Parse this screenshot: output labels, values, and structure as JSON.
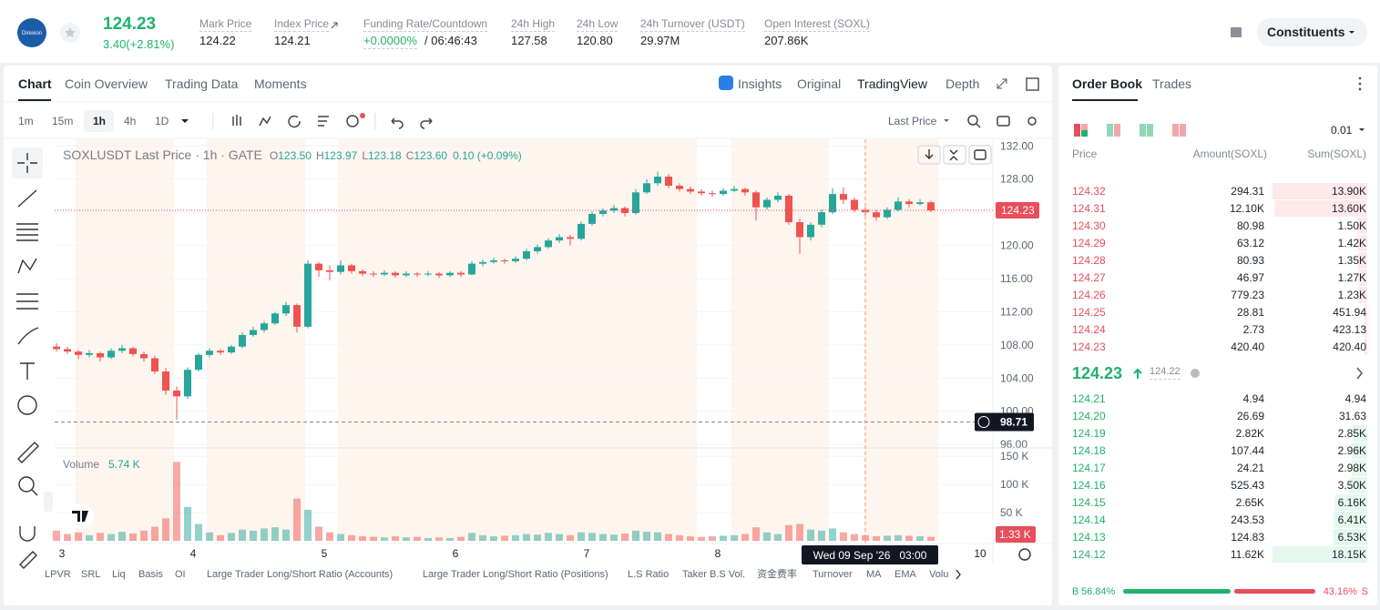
{
  "header": {
    "logo_text": "Direxion",
    "price": "124.23",
    "change": "3.40(+2.81%)",
    "stats": [
      {
        "label": "Mark Price",
        "value": "124.22"
      },
      {
        "label": "Index Price",
        "value": "124.21"
      },
      {
        "label": "Funding Rate/Countdown",
        "value": "+0.0000%",
        "countdown": "/ 06:46:43"
      },
      {
        "label": "24h High",
        "value": "127.58"
      },
      {
        "label": "24h Low",
        "value": "120.80"
      },
      {
        "label": "24h Turnover (USDT)",
        "value": "29.97M"
      },
      {
        "label": "Open Interest (SOXL)",
        "value": "207.86K"
      }
    ],
    "button": "Constituents"
  },
  "tabs": [
    "Chart",
    "Coin Overview",
    "Trading Data",
    "Moments"
  ],
  "view_tabs": [
    "Insights",
    "Original",
    "TradingView",
    "Depth"
  ],
  "intervals": [
    "1m",
    "15m",
    "1h",
    "4h",
    "1D"
  ],
  "price_source": "Last Price",
  "indicators": [
    "LPVR",
    "SRL",
    "Liq",
    "Basis",
    "OI",
    "Large Trader Long/Short Ratio (Accounts)",
    "Large Trader Long/Short Ratio (Positions)",
    "L.S Ratio",
    "Taker B.S Vol.",
    "资金费率",
    "Turnover",
    "MA",
    "EMA",
    "Volu"
  ],
  "chart_data": {
    "type": "candlestick",
    "title": "SOXLUSDT Last Price · 1h · GATE",
    "legend_fields": [
      {
        "label": "O",
        "value": "123.50"
      },
      {
        "label": "H",
        "value": "123.97"
      },
      {
        "label": "L",
        "value": "123.18"
      },
      {
        "label": "C",
        "value": "123.60"
      }
    ],
    "legend_change": "0.10 (+0.09%)",
    "x_labels": [
      "3",
      "4",
      "5",
      "6",
      "7",
      "8",
      "10"
    ],
    "candles": [
      [
        107.8,
        108.2,
        107.2,
        107.5
      ],
      [
        107.5,
        107.8,
        106.9,
        107.2
      ],
      [
        107.2,
        107.4,
        106.3,
        106.8
      ],
      [
        106.8,
        107.4,
        106.5,
        107.0
      ],
      [
        107.0,
        107.2,
        106.0,
        106.5
      ],
      [
        106.5,
        107.6,
        106.3,
        107.3
      ],
      [
        107.3,
        108.0,
        107.0,
        107.6
      ],
      [
        107.6,
        107.8,
        106.6,
        106.9
      ],
      [
        106.9,
        107.2,
        106.0,
        106.4
      ],
      [
        106.4,
        106.7,
        104.5,
        104.8
      ],
      [
        104.8,
        105.2,
        102.0,
        102.5
      ],
      [
        102.5,
        103.0,
        99.0,
        101.8
      ],
      [
        101.8,
        105.3,
        101.5,
        105.0
      ],
      [
        105.0,
        107.0,
        104.8,
        106.8
      ],
      [
        106.8,
        107.6,
        106.5,
        107.3
      ],
      [
        107.3,
        107.5,
        106.8,
        107.1
      ],
      [
        107.1,
        108.0,
        106.9,
        107.8
      ],
      [
        107.8,
        109.5,
        107.6,
        109.2
      ],
      [
        109.2,
        110.2,
        109.0,
        109.8
      ],
      [
        109.8,
        110.9,
        109.5,
        110.6
      ],
      [
        110.6,
        112.0,
        110.4,
        111.8
      ],
      [
        111.8,
        113.2,
        111.5,
        112.8
      ],
      [
        112.8,
        113.0,
        109.5,
        110.2
      ],
      [
        110.2,
        118.2,
        110.0,
        117.8
      ],
      [
        117.8,
        118.0,
        116.2,
        117.0
      ],
      [
        117.0,
        117.6,
        115.8,
        116.8
      ],
      [
        116.8,
        118.2,
        116.5,
        117.6
      ],
      [
        117.6,
        117.8,
        116.6,
        116.9
      ],
      [
        116.9,
        117.1,
        116.3,
        116.6
      ],
      [
        116.6,
        116.9,
        116.2,
        116.5
      ],
      [
        116.5,
        117.0,
        116.3,
        116.7
      ],
      [
        116.7,
        116.9,
        116.1,
        116.4
      ],
      [
        116.4,
        116.9,
        116.2,
        116.6
      ],
      [
        116.6,
        116.8,
        116.2,
        116.5
      ],
      [
        116.5,
        116.9,
        116.3,
        116.6
      ],
      [
        116.6,
        116.8,
        116.1,
        116.4
      ],
      [
        116.4,
        116.9,
        116.2,
        116.7
      ],
      [
        116.7,
        116.9,
        116.2,
        116.5
      ],
      [
        116.5,
        118.1,
        116.4,
        117.8
      ],
      [
        117.8,
        118.3,
        117.5,
        118.0
      ],
      [
        118.0,
        118.5,
        117.8,
        118.2
      ],
      [
        118.2,
        118.4,
        117.8,
        118.1
      ],
      [
        118.1,
        118.7,
        117.9,
        118.4
      ],
      [
        118.4,
        119.6,
        118.2,
        119.3
      ],
      [
        119.3,
        120.1,
        119.0,
        119.8
      ],
      [
        119.8,
        120.9,
        119.6,
        120.6
      ],
      [
        120.6,
        121.4,
        120.3,
        121.0
      ],
      [
        121.0,
        121.3,
        120.0,
        120.8
      ],
      [
        120.8,
        122.9,
        120.6,
        122.6
      ],
      [
        122.6,
        124.1,
        122.4,
        123.8
      ],
      [
        123.8,
        124.5,
        123.5,
        124.2
      ],
      [
        124.2,
        124.9,
        123.9,
        124.5
      ],
      [
        124.5,
        124.7,
        123.5,
        123.9
      ],
      [
        123.9,
        126.8,
        123.7,
        126.4
      ],
      [
        126.4,
        128.0,
        126.2,
        127.5
      ],
      [
        127.5,
        128.9,
        127.2,
        128.3
      ],
      [
        128.3,
        128.6,
        126.9,
        127.2
      ],
      [
        127.2,
        127.5,
        126.5,
        126.8
      ],
      [
        126.8,
        127.1,
        126.2,
        126.5
      ],
      [
        126.5,
        126.8,
        126.0,
        126.3
      ],
      [
        126.3,
        126.6,
        125.9,
        126.2
      ],
      [
        126.2,
        126.9,
        126.0,
        126.6
      ],
      [
        126.6,
        127.2,
        126.4,
        126.8
      ],
      [
        126.8,
        127.0,
        126.0,
        126.4
      ],
      [
        126.4,
        126.6,
        123.0,
        124.6
      ],
      [
        124.6,
        125.8,
        124.3,
        125.5
      ],
      [
        125.5,
        126.4,
        125.2,
        126.0
      ],
      [
        126.0,
        126.2,
        122.5,
        122.8
      ],
      [
        122.8,
        123.2,
        119.0,
        121.0
      ],
      [
        121.0,
        122.8,
        120.6,
        122.5
      ],
      [
        122.5,
        124.3,
        122.2,
        124.0
      ],
      [
        124.0,
        126.9,
        123.8,
        126.2
      ],
      [
        126.2,
        127.0,
        125.0,
        125.5
      ],
      [
        125.5,
        125.8,
        124.0,
        124.3
      ],
      [
        124.3,
        124.6,
        123.6,
        124.0
      ],
      [
        124.0,
        124.3,
        123.0,
        123.4
      ],
      [
        123.4,
        124.6,
        123.2,
        124.3
      ],
      [
        124.3,
        125.8,
        124.1,
        125.3
      ],
      [
        125.3,
        125.6,
        124.6,
        125.0
      ],
      [
        125.0,
        125.6,
        124.8,
        125.2
      ],
      [
        125.2,
        125.4,
        124.0,
        124.23
      ]
    ],
    "volume_label": "Volume",
    "volume_value": "5.74 K",
    "volume": [
      18000,
      12000,
      15000,
      10000,
      14000,
      12000,
      16000,
      13000,
      18000,
      25000,
      40000,
      140000,
      60000,
      30000,
      15000,
      10000,
      14000,
      20000,
      18000,
      22000,
      24000,
      20000,
      75000,
      55000,
      25000,
      15000,
      12000,
      10000,
      8000,
      7000,
      6000,
      8000,
      6000,
      7000,
      5000,
      6000,
      5000,
      7000,
      14000,
      10000,
      8000,
      9000,
      10000,
      12000,
      11000,
      14000,
      12000,
      10000,
      15000,
      14000,
      12000,
      11000,
      13000,
      18000,
      16000,
      15000,
      12000,
      10000,
      8000,
      7000,
      8000,
      9000,
      10000,
      12000,
      24000,
      15000,
      12000,
      28000,
      30000,
      20000,
      18000,
      22000,
      15000,
      12000,
      10000,
      8000,
      9000,
      10000,
      9000,
      8000,
      7000
    ],
    "ylim": [
      95.8,
      132.8
    ],
    "yticks": [
      {
        "value": 96,
        "label": "96.00"
      },
      {
        "value": 100,
        "label": "100.00"
      },
      {
        "value": 104,
        "label": "104.00"
      },
      {
        "value": 108,
        "label": "108.00"
      },
      {
        "value": 112,
        "label": "112.00"
      },
      {
        "value": 116,
        "label": "116.00"
      },
      {
        "value": 120,
        "label": "120.00"
      },
      {
        "value": 124,
        "label": "124.00"
      },
      {
        "value": 128,
        "label": "128.00"
      },
      {
        "value": 132,
        "label": "132.00"
      }
    ],
    "y2lim": [
      0,
      160000
    ],
    "y2ticks": [
      {
        "value": 50000,
        "label": "50 K"
      },
      {
        "value": 100000,
        "label": "100 K"
      },
      {
        "value": 150000,
        "label": "150 K"
      }
    ],
    "last_price": 124.23,
    "crosshair_price": 98.71,
    "last_volume": {
      "value": 1330,
      "label": "1.33 K"
    },
    "crosshair_time": "Wed 09 Sep '26   03:00",
    "up_color": "#26a69a",
    "down_color": "#ef5350"
  },
  "order_book": {
    "tabs": [
      "Order Book",
      "Trades"
    ],
    "precision": "0.01",
    "columns": [
      "Price",
      "Amount(SOXL)",
      "Sum(SOXL)"
    ],
    "asks": [
      {
        "price": "124.32",
        "amount": "294.31",
        "sum": {
          "value": 13900,
          "label": "13.90K"
        }
      },
      {
        "price": "124.31",
        "amount": "12.10K",
        "sum": {
          "value": 13600,
          "label": "13.60K"
        }
      },
      {
        "price": "124.30",
        "amount": "80.98",
        "sum": {
          "value": 1500,
          "label": "1.50K"
        }
      },
      {
        "price": "124.29",
        "amount": "63.12",
        "sum": {
          "value": 1420,
          "label": "1.42K"
        }
      },
      {
        "price": "124.28",
        "amount": "80.93",
        "sum": {
          "value": 1350,
          "label": "1.35K"
        }
      },
      {
        "price": "124.27",
        "amount": "46.97",
        "sum": {
          "value": 1270,
          "label": "1.27K"
        }
      },
      {
        "price": "124.26",
        "amount": "779.23",
        "sum": {
          "value": 1230,
          "label": "1.23K"
        }
      },
      {
        "price": "124.25",
        "amount": "28.81",
        "sum": {
          "value": 451.94,
          "label": "451.94"
        }
      },
      {
        "price": "124.24",
        "amount": "2.73",
        "sum": {
          "value": 423.13,
          "label": "423.13"
        }
      },
      {
        "price": "124.23",
        "amount": "420.40",
        "sum": {
          "value": 420.4,
          "label": "420.40"
        }
      }
    ],
    "mid_price": "124.23",
    "mark_price": "124.22",
    "bids": [
      {
        "price": "124.21",
        "amount": "4.94",
        "sum": {
          "value": 4.94,
          "label": "4.94"
        }
      },
      {
        "price": "124.20",
        "amount": "26.69",
        "sum": {
          "value": 31.63,
          "label": "31.63"
        }
      },
      {
        "price": "124.19",
        "amount": "2.82K",
        "sum": {
          "value": 2850,
          "label": "2.85K"
        }
      },
      {
        "price": "124.18",
        "amount": "107.44",
        "sum": {
          "value": 2960,
          "label": "2.96K"
        }
      },
      {
        "price": "124.17",
        "amount": "24.21",
        "sum": {
          "value": 2980,
          "label": "2.98K"
        }
      },
      {
        "price": "124.16",
        "amount": "525.43",
        "sum": {
          "value": 3500,
          "label": "3.50K"
        }
      },
      {
        "price": "124.15",
        "amount": "2.65K",
        "sum": {
          "value": 6160,
          "label": "6.16K"
        }
      },
      {
        "price": "124.14",
        "amount": "243.53",
        "sum": {
          "value": 6410,
          "label": "6.41K"
        }
      },
      {
        "price": "124.13",
        "amount": "124.83",
        "sum": {
          "value": 6530,
          "label": "6.53K"
        }
      },
      {
        "price": "124.12",
        "amount": "11.62K",
        "sum": {
          "value": 18150,
          "label": "18.15K"
        }
      }
    ],
    "buy_letter": "B",
    "buy": {
      "value": 56.84,
      "label": "56.84%"
    },
    "sell": {
      "value": 43.16,
      "label": "43.16%"
    },
    "sell_letter": "S"
  }
}
